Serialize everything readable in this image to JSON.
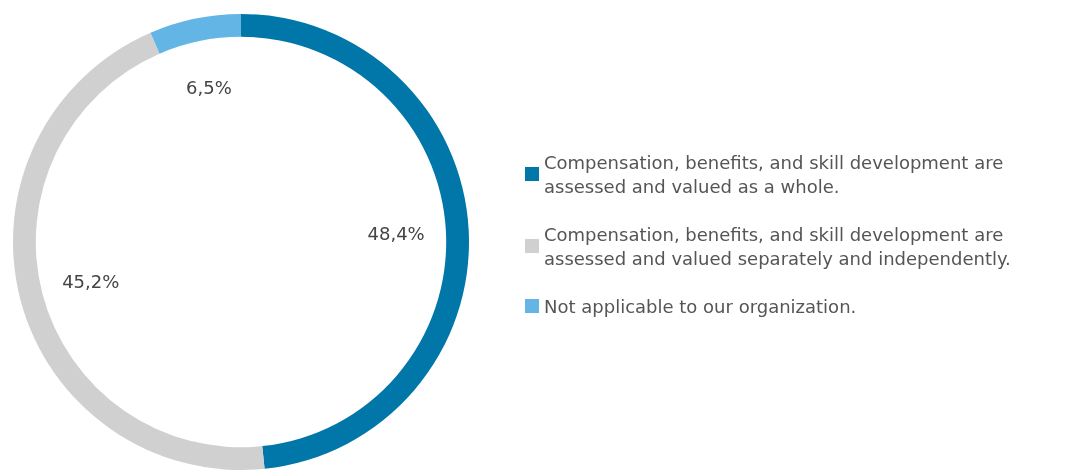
{
  "chart_data": {
    "type": "donut",
    "categories": [
      "Compensation, benefits, and skill development are assessed and valued as a whole.",
      "Compensation, benefits, and skill development are assessed and valued separately and independently.",
      "Not applicable to our organization."
    ],
    "values": [
      48.4,
      45.2,
      6.5
    ],
    "value_labels": [
      "48,4%",
      "45,2%",
      "6,5%"
    ],
    "colors": [
      "#0077a8",
      "#d0d0d0",
      "#63b5e5"
    ],
    "legend": "right"
  }
}
